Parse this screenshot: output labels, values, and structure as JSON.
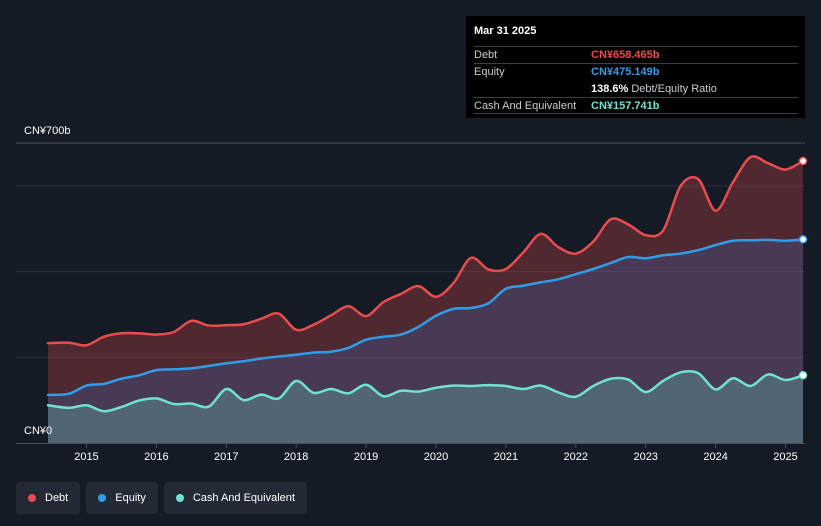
{
  "tooltip": {
    "date": "Mar 31 2025",
    "debt_label": "Debt",
    "debt_value": "CN¥658.465b",
    "equity_label": "Equity",
    "equity_value": "CN¥475.149b",
    "ratio_value": "138.6%",
    "ratio_label": "Debt/Equity Ratio",
    "cash_label": "Cash And Equivalent",
    "cash_value": "CN¥157.741b"
  },
  "legend": {
    "debt": "Debt",
    "equity": "Equity",
    "cash": "Cash And Equivalent"
  },
  "colors": {
    "debt": "#e94c4f",
    "equity": "#2f9de8",
    "cash": "#6fe3cf",
    "background": "#151b24"
  },
  "chart_data": {
    "type": "area",
    "title": "",
    "xlabel": "",
    "ylabel": "",
    "y_top_label": "CN¥700b",
    "y_bottom_label": "CN¥0",
    "ylim": [
      0,
      700
    ],
    "xlim": [
      2014.45,
      2025.25
    ],
    "x_ticks": [
      "2015",
      "2016",
      "2017",
      "2018",
      "2019",
      "2020",
      "2021",
      "2022",
      "2023",
      "2024",
      "2025"
    ],
    "x_tick_values": [
      2015,
      2016,
      2017,
      2018,
      2019,
      2020,
      2021,
      2022,
      2023,
      2024,
      2025
    ],
    "series": [
      {
        "name": "Debt",
        "points": [
          [
            2014.45,
            233
          ],
          [
            2014.75,
            234
          ],
          [
            2015.0,
            228
          ],
          [
            2015.25,
            248
          ],
          [
            2015.5,
            256
          ],
          [
            2015.75,
            256
          ],
          [
            2016.0,
            253
          ],
          [
            2016.25,
            259
          ],
          [
            2016.5,
            285
          ],
          [
            2016.75,
            274
          ],
          [
            2017.0,
            275
          ],
          [
            2017.25,
            277
          ],
          [
            2017.5,
            290
          ],
          [
            2017.75,
            302
          ],
          [
            2018.0,
            264
          ],
          [
            2018.25,
            276
          ],
          [
            2018.5,
            298
          ],
          [
            2018.75,
            319
          ],
          [
            2019.0,
            296
          ],
          [
            2019.25,
            329
          ],
          [
            2019.5,
            348
          ],
          [
            2019.75,
            366
          ],
          [
            2020.0,
            341
          ],
          [
            2020.25,
            373
          ],
          [
            2020.5,
            432
          ],
          [
            2020.75,
            405
          ],
          [
            2021.0,
            406
          ],
          [
            2021.25,
            445
          ],
          [
            2021.5,
            488
          ],
          [
            2021.75,
            457
          ],
          [
            2022.0,
            442
          ],
          [
            2022.25,
            470
          ],
          [
            2022.5,
            522
          ],
          [
            2022.75,
            510
          ],
          [
            2023.0,
            485
          ],
          [
            2023.25,
            496
          ],
          [
            2023.5,
            600
          ],
          [
            2023.75,
            616
          ],
          [
            2024.0,
            542
          ],
          [
            2024.25,
            609
          ],
          [
            2024.5,
            667
          ],
          [
            2024.75,
            653
          ],
          [
            2025.0,
            638
          ],
          [
            2025.25,
            658
          ]
        ]
      },
      {
        "name": "Equity",
        "points": [
          [
            2014.45,
            112
          ],
          [
            2014.75,
            115
          ],
          [
            2015.0,
            134
          ],
          [
            2015.25,
            138
          ],
          [
            2015.5,
            150
          ],
          [
            2015.75,
            158
          ],
          [
            2016.0,
            170
          ],
          [
            2016.25,
            172
          ],
          [
            2016.5,
            174
          ],
          [
            2016.75,
            180
          ],
          [
            2017.0,
            186
          ],
          [
            2017.25,
            191
          ],
          [
            2017.5,
            197
          ],
          [
            2017.75,
            202
          ],
          [
            2018.0,
            206
          ],
          [
            2018.25,
            211
          ],
          [
            2018.5,
            213
          ],
          [
            2018.75,
            222
          ],
          [
            2019.0,
            241
          ],
          [
            2019.25,
            248
          ],
          [
            2019.5,
            253
          ],
          [
            2019.75,
            271
          ],
          [
            2020.0,
            297
          ],
          [
            2020.25,
            313
          ],
          [
            2020.5,
            315
          ],
          [
            2020.75,
            326
          ],
          [
            2021.0,
            360
          ],
          [
            2021.25,
            367
          ],
          [
            2021.5,
            375
          ],
          [
            2021.75,
            382
          ],
          [
            2022.0,
            394
          ],
          [
            2022.25,
            406
          ],
          [
            2022.5,
            420
          ],
          [
            2022.75,
            434
          ],
          [
            2023.0,
            431
          ],
          [
            2023.25,
            438
          ],
          [
            2023.5,
            442
          ],
          [
            2023.75,
            450
          ],
          [
            2024.0,
            462
          ],
          [
            2024.25,
            472
          ],
          [
            2024.5,
            473
          ],
          [
            2024.75,
            474
          ],
          [
            2025.0,
            472
          ],
          [
            2025.25,
            475
          ]
        ]
      },
      {
        "name": "Cash And Equivalent",
        "points": [
          [
            2014.45,
            88
          ],
          [
            2014.75,
            82
          ],
          [
            2015.0,
            88
          ],
          [
            2015.25,
            74
          ],
          [
            2015.5,
            84
          ],
          [
            2015.75,
            99
          ],
          [
            2016.0,
            104
          ],
          [
            2016.25,
            91
          ],
          [
            2016.5,
            92
          ],
          [
            2016.75,
            85
          ],
          [
            2017.0,
            126
          ],
          [
            2017.25,
            100
          ],
          [
            2017.5,
            113
          ],
          [
            2017.75,
            104
          ],
          [
            2018.0,
            145
          ],
          [
            2018.25,
            117
          ],
          [
            2018.5,
            126
          ],
          [
            2018.75,
            116
          ],
          [
            2019.0,
            136
          ],
          [
            2019.25,
            109
          ],
          [
            2019.5,
            122
          ],
          [
            2019.75,
            120
          ],
          [
            2020.0,
            129
          ],
          [
            2020.25,
            134
          ],
          [
            2020.5,
            133
          ],
          [
            2020.75,
            135
          ],
          [
            2021.0,
            133
          ],
          [
            2021.25,
            126
          ],
          [
            2021.5,
            134
          ],
          [
            2021.75,
            118
          ],
          [
            2022.0,
            108
          ],
          [
            2022.25,
            133
          ],
          [
            2022.5,
            150
          ],
          [
            2022.75,
            148
          ],
          [
            2023.0,
            119
          ],
          [
            2023.25,
            145
          ],
          [
            2023.5,
            165
          ],
          [
            2023.75,
            163
          ],
          [
            2024.0,
            125
          ],
          [
            2024.25,
            151
          ],
          [
            2024.5,
            133
          ],
          [
            2024.75,
            160
          ],
          [
            2025.0,
            147
          ],
          [
            2025.25,
            158
          ]
        ]
      }
    ]
  }
}
